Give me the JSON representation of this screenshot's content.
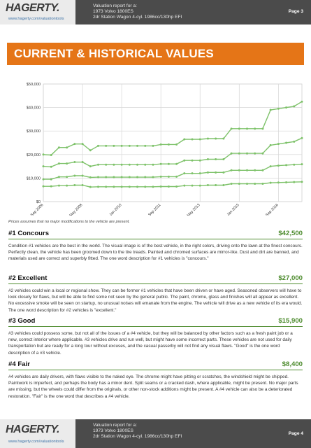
{
  "header": {
    "logo": "HAGERTY.",
    "logo_url": "www.hagerty.com/valuationtools",
    "report_line1": "Valuation report for a:",
    "report_line2": "1973 Volvo 1800ES",
    "report_line3": "2dr Station Wagon 4-cyl. 1986cc/130hp EFI",
    "page": "Page 3"
  },
  "section_title": "CURRENT & HISTORICAL VALUES",
  "chart_data": {
    "type": "line",
    "x": [
      "Sep 2006",
      "Jan 2007",
      "May 2007",
      "Sep 2007",
      "Jan 2008",
      "May 2008",
      "Sep 2008",
      "Jan 2009",
      "May 2009",
      "Sep 2009",
      "Jan 2010",
      "May 2010",
      "Sep 2010",
      "Jan 2011",
      "May 2011",
      "Sep 2011",
      "Jan 2012",
      "May 2012",
      "Sep 2012",
      "Jan 2013",
      "May 2013",
      "Sep 2013",
      "Jan 2014",
      "May 2014",
      "Sep 2014",
      "Jan 2015",
      "May 2015",
      "Sep 2015",
      "Jan 2016",
      "May 2016",
      "Sep 2016",
      "Jan 2017",
      "May 2017",
      "Sep 2017"
    ],
    "x_tick_labels": [
      "Sep 2006",
      "May 2008",
      "Jan 2010",
      "Sep 2011",
      "May 2013",
      "Jan 2015",
      "Sep 2016"
    ],
    "x_tick_indices": [
      0,
      5,
      10,
      15,
      20,
      25,
      30
    ],
    "ylim": [
      0,
      50000
    ],
    "y_ticks": [
      "$0",
      "$10,000",
      "$20,000",
      "$30,000",
      "$40,000",
      "$50,000"
    ],
    "grid": true,
    "series": [
      {
        "color": "#7ec26a",
        "values": [
          20000,
          19800,
          23000,
          23000,
          24500,
          24500,
          21800,
          23700,
          23700,
          23700,
          23700,
          23700,
          23700,
          23700,
          23700,
          24300,
          24300,
          24300,
          26500,
          26500,
          26500,
          26800,
          26800,
          26800,
          31000,
          31000,
          31000,
          31000,
          31000,
          39000,
          39500,
          40000,
          40500,
          42500
        ]
      },
      {
        "color": "#7ec26a",
        "values": [
          15000,
          14800,
          16200,
          16200,
          16800,
          16800,
          15000,
          15700,
          15700,
          15700,
          15700,
          15700,
          15700,
          15700,
          15700,
          16000,
          16000,
          16000,
          17500,
          17500,
          17500,
          18000,
          18000,
          18000,
          20500,
          20500,
          20500,
          20500,
          20500,
          24000,
          24500,
          25000,
          25500,
          27000
        ]
      },
      {
        "color": "#7ec26a",
        "values": [
          9500,
          9500,
          10500,
          10500,
          11000,
          11000,
          10300,
          10400,
          10400,
          10400,
          10400,
          10400,
          10400,
          10400,
          10400,
          10600,
          10600,
          10600,
          12000,
          12000,
          12000,
          12400,
          12400,
          12400,
          13300,
          13300,
          13300,
          13300,
          13300,
          15000,
          15300,
          15500,
          15700,
          15900
        ]
      },
      {
        "color": "#7ec26a",
        "values": [
          6500,
          6500,
          6800,
          6800,
          7000,
          7000,
          6200,
          6300,
          6300,
          6300,
          6300,
          6300,
          6300,
          6300,
          6300,
          6400,
          6400,
          6400,
          6800,
          6800,
          6800,
          7000,
          7000,
          7000,
          7600,
          7600,
          7600,
          7600,
          7600,
          8000,
          8100,
          8200,
          8300,
          8400
        ]
      }
    ]
  },
  "chart_note": "Prices assumes that no major modifications to the vehicle are present.",
  "conditions": [
    {
      "title": "#1 Concours",
      "value": "$42,500",
      "desc": "Condition #1 vehicles are the best in the world. The visual image is of the best vehicle, in the right colors, driving onto the lawn at the finest concours. Perfectly clean, the vehicle has been groomed down to the tire treads. Painted and chromed surfaces are mirror-like. Dust and dirt are banned, and materials used are correct and superbly fitted. The one word description for #1 vehicles is \"concours.\""
    },
    {
      "title": "#2 Excellent",
      "value": "$27,000",
      "desc": "#2 vehicles could win a local or regional show. They can be former #1 vehicles that have been driven or have aged. Seasoned observers will have to look closely for flaws, but will be able to find some not seen by the general public. The paint, chrome, glass and finishes will all appear as excellent. No excessive smoke will be seen on startup, no unusual noises will emanate from the engine. The vehicle will drive as a new vehicle of its era would. The one word description for #2 vehicles is \"excellent.\""
    },
    {
      "title": "#3 Good",
      "value": "$15,900",
      "desc": "#3 vehicles could possess some, but not all of the issues of a #4 vehicle, but they will be balanced by other factors such as a fresh paint job or a new, correct interior where applicable. #3 vehicles drive and run well, but might have some incorrect parts. These vehicles are not used for daily transportation but are ready for a long tour without excuses, and the casual passerby will not find any visual flaws. \"Good\" is the one word description of a #3 vehicle."
    },
    {
      "title": "#4 Fair",
      "value": "$8,400",
      "desc": "#4 vehicles are daily drivers, with flaws visible to the naked eye. The chrome might have pitting or scratches, the windshield might be chipped. Paintwork is imperfect, and perhaps the body has a minor dent. Split seams or a cracked dash, where applicable, might be present. No major parts are missing, but the wheels could differ from the originals, or other non-stock additions might be present. A #4 vehicle can also be a deteriorated restoration. \"Fair\" is the one word that describes a #4 vehicle."
    }
  ],
  "footer": {
    "logo": "HAGERTY.",
    "logo_url": "www.hagerty.com/valuationtools",
    "report_line1": "Valuation report for a:",
    "report_line2": "1973 Volvo 1800ES",
    "report_line3": "2dr Station Wagon 4-cyl. 1986cc/130hp EFI",
    "page": "Page 4"
  }
}
